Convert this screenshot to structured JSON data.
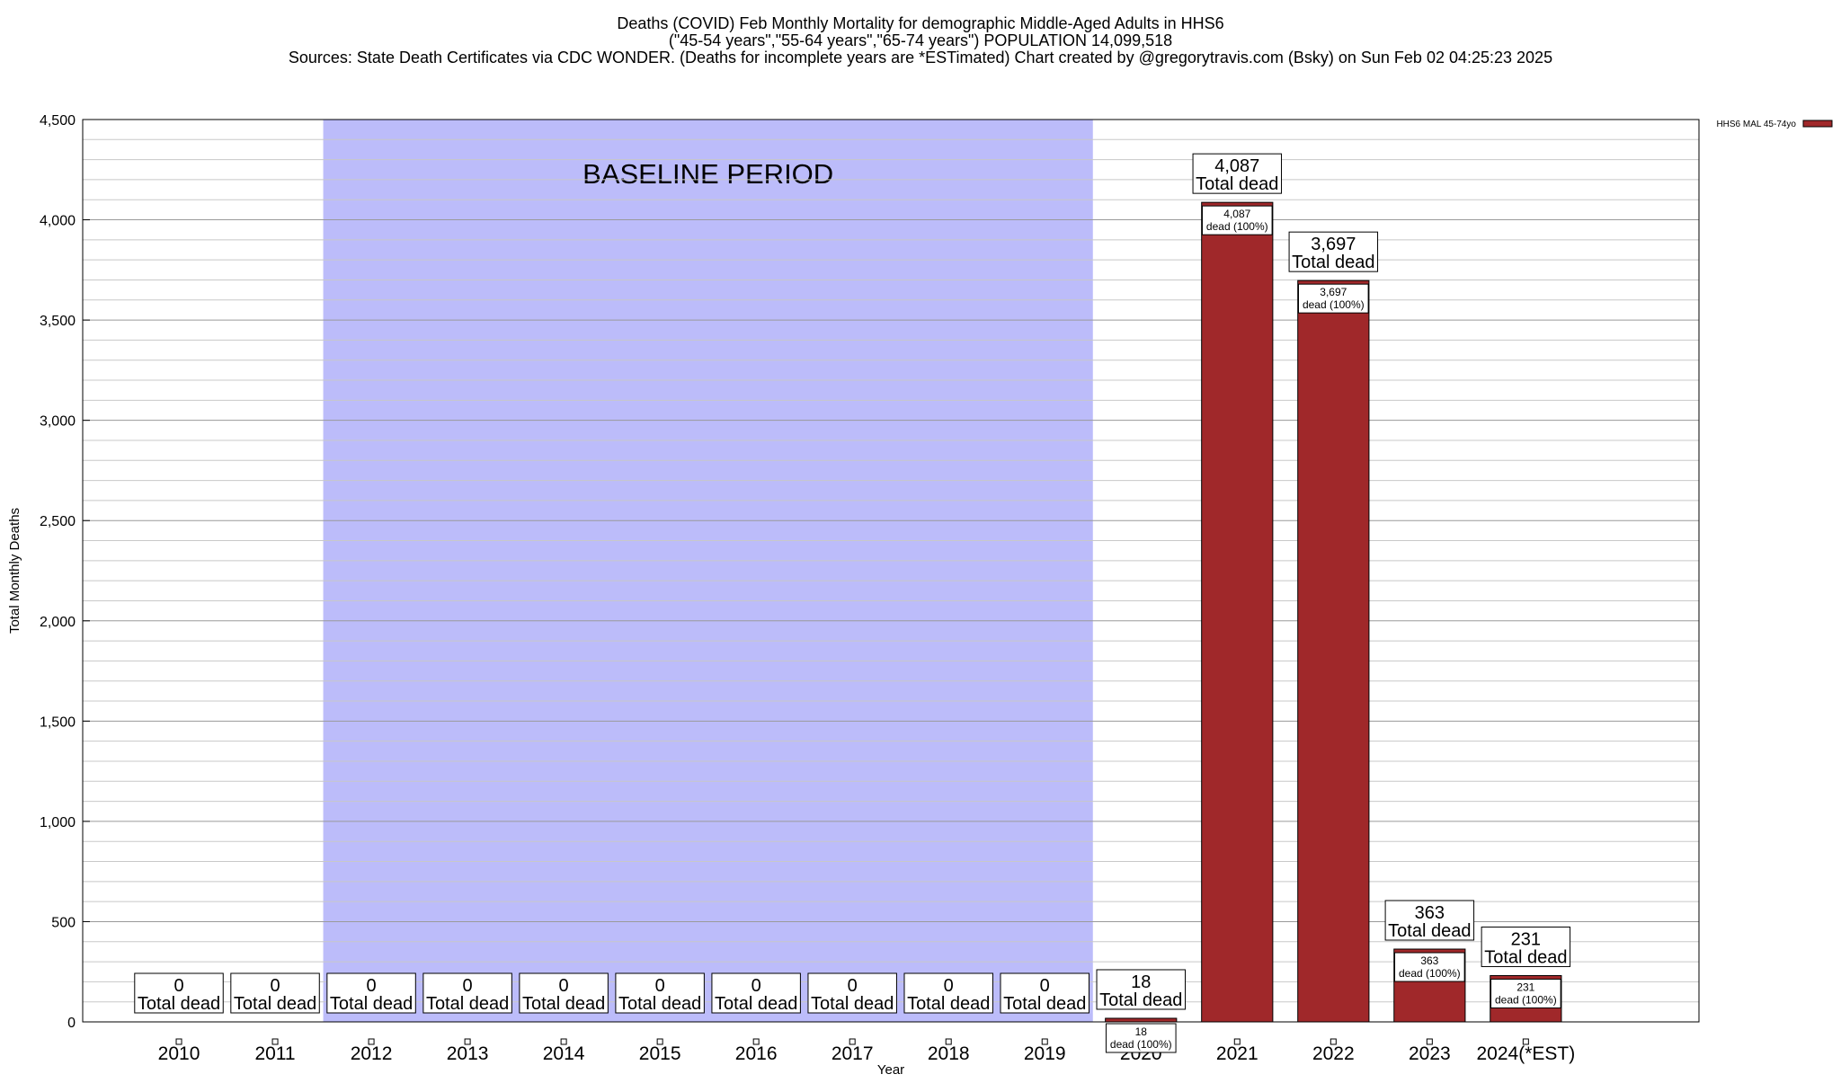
{
  "chart_data": {
    "type": "bar",
    "title_lines": [
      "Deaths (COVID) Feb Monthly Mortality for demographic Middle-Aged Adults in HHS6",
      "(\"45-54 years\",\"55-64 years\",\"65-74 years\") POPULATION 14,099,518",
      "Sources: State Death Certificates via CDC WONDER. (Deaths for incomplete years are *ESTimated)                Chart created by @gregorytravis.com (Bsky) on Sun Feb 02 04:25:23 2025"
    ],
    "xlabel": "Year",
    "ylabel": "Total Monthly Deaths",
    "ylim": [
      0,
      4500
    ],
    "y_ticks": [
      "0",
      "500",
      "1,000",
      "1,500",
      "2,000",
      "2,500",
      "3,000",
      "3,500",
      "4,000",
      "4,500"
    ],
    "grid": true,
    "legend_position": "top-right",
    "baseline_label": "BASELINE PERIOD",
    "baseline_range": [
      "2012",
      "2019"
    ],
    "baseline_color": "#bcbcfa",
    "categories": [
      "2010",
      "2011",
      "2012",
      "2013",
      "2014",
      "2015",
      "2016",
      "2017",
      "2018",
      "2019",
      "2020",
      "2021",
      "2022",
      "2023",
      "2024(*EST)"
    ],
    "series": [
      {
        "name": "HHS6 MAL 45-74yo",
        "color": "#a0282a",
        "values": [
          0,
          0,
          0,
          0,
          0,
          0,
          0,
          0,
          0,
          0,
          18,
          4087,
          3697,
          363,
          231
        ]
      }
    ],
    "total_labels": [
      "0",
      "0",
      "0",
      "0",
      "0",
      "0",
      "0",
      "0",
      "0",
      "0",
      "18",
      "4,087",
      "3,697",
      "363",
      "231"
    ],
    "total_caption": "Total dead",
    "inner_labels": [
      "",
      "",
      "",
      "",
      "",
      "",
      "",
      "",
      "",
      "",
      "18",
      "4,087",
      "3,697",
      "363",
      "231"
    ],
    "inner_caption": "dead (100%)"
  }
}
